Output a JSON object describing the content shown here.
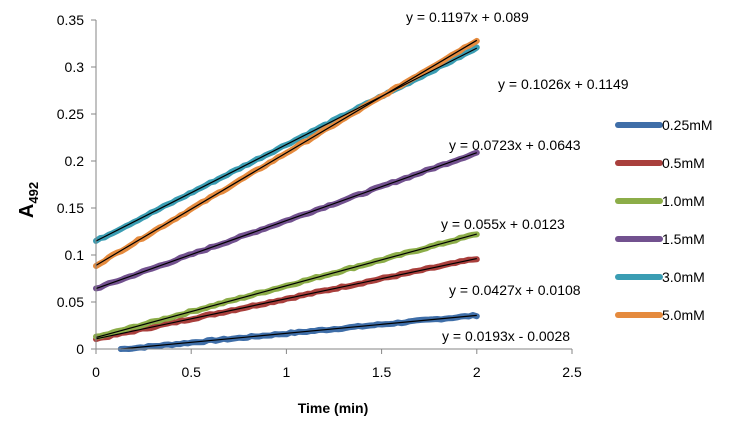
{
  "chart_data": {
    "type": "line",
    "xlabel": "Time (min)",
    "ylabel": "A",
    "ylabel_sub": "492",
    "xlim": [
      0,
      2.5
    ],
    "ylim": [
      0,
      0.35
    ],
    "x_ticks": [
      "0",
      "0.5",
      "1",
      "1.5",
      "2",
      "2.5"
    ],
    "y_ticks": [
      "0",
      "0.05",
      "0.1",
      "0.15",
      "0.2",
      "0.25",
      "0.3",
      "0.35"
    ],
    "grid": false,
    "legend_position": "right",
    "series": [
      {
        "name": "0.25mM",
        "color": "#3F6EA8",
        "slope": 0.0193,
        "intercept": -0.0028,
        "x_range": [
          0.13,
          2.0
        ],
        "equation": "y = 0.0193x - 0.0028"
      },
      {
        "name": "0.5mM",
        "color": "#A93F3C",
        "slope": 0.0427,
        "intercept": 0.0108,
        "x_range": [
          0.0,
          2.0
        ],
        "equation": "y = 0.0427x + 0.0108"
      },
      {
        "name": "1.0mM",
        "color": "#8CAD48",
        "slope": 0.055,
        "intercept": 0.0123,
        "x_range": [
          0.0,
          2.0
        ],
        "equation": "y = 0.055x + 0.0123"
      },
      {
        "name": "1.5mM",
        "color": "#72518F",
        "slope": 0.0723,
        "intercept": 0.0643,
        "x_range": [
          0.0,
          2.0
        ],
        "equation": "y = 0.0723x + 0.0643"
      },
      {
        "name": "3.0mM",
        "color": "#3A9DB3",
        "slope": 0.1026,
        "intercept": 0.1149,
        "x_range": [
          0.0,
          2.0
        ],
        "equation": "y = 0.1026x + 0.1149"
      },
      {
        "name": "5.0mM",
        "color": "#E58A3D",
        "slope": 0.1197,
        "intercept": 0.089,
        "x_range": [
          0.0,
          2.0
        ],
        "equation": "y = 0.1197x + 0.089"
      }
    ]
  }
}
